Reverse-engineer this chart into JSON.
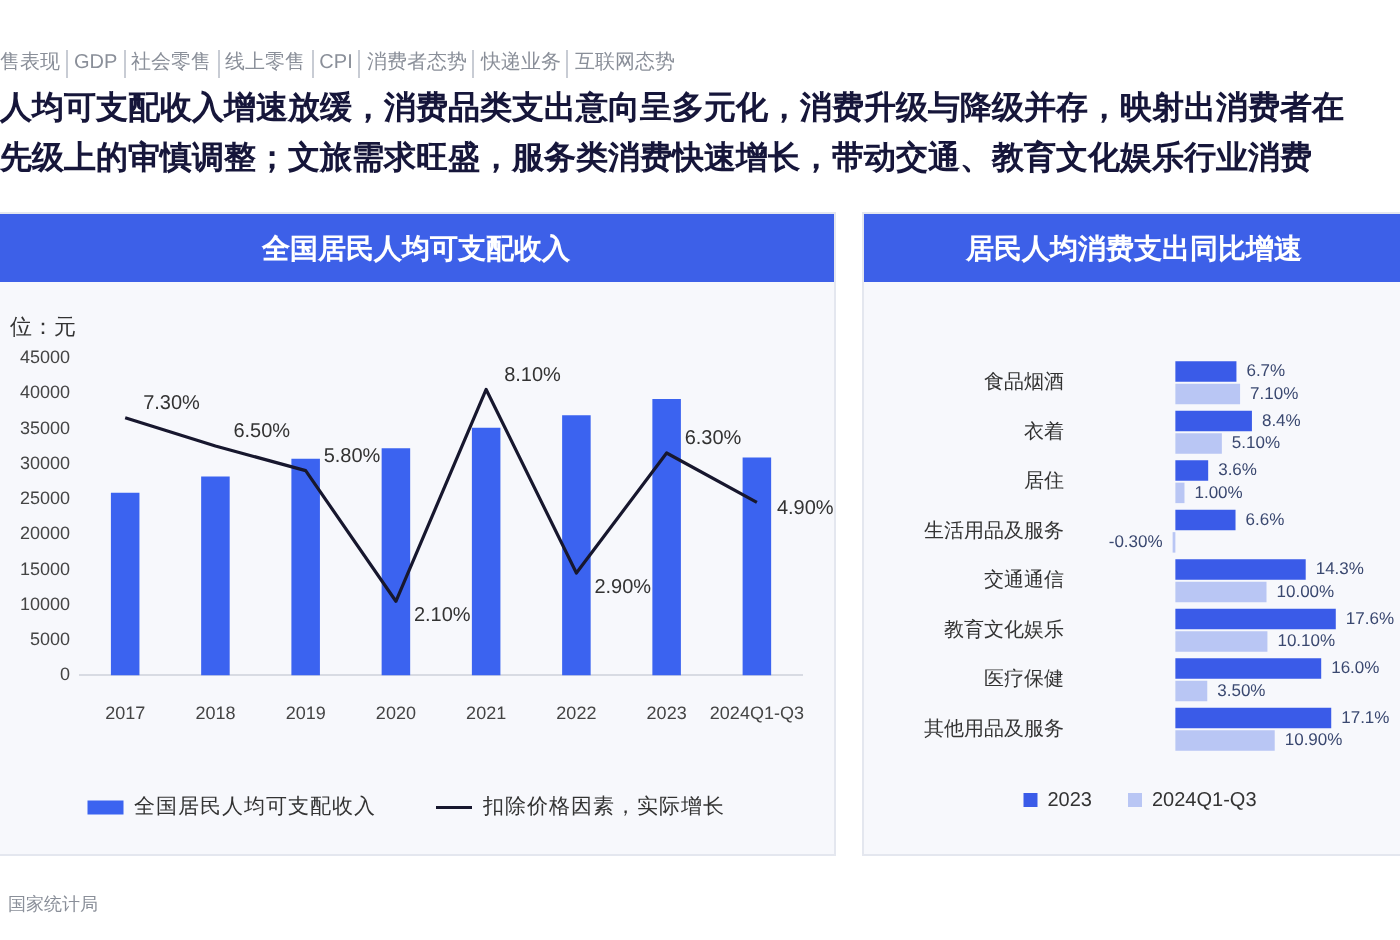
{
  "chart_data": [
    {
      "type": "other",
      "title": "人均可支配收入增速放缓，消费品类支出意向呈多元化，消费升级与降级并存，映射出消费者在先级上的审慎调整；文旅需求旺盛，服务类消费快速增长，带动交通、教育文化娱乐行业消费",
      "annotations": [
        "售表现",
        "GDP",
        "社会零售",
        "线上零售",
        "CPI",
        "消费者态势",
        "快递业务",
        "互联网态势"
      ]
    },
    {
      "type": "bar",
      "title": "全国居民人均可支配收入",
      "ylabel": "位：元",
      "categories": [
        "2017",
        "2018",
        "2019",
        "2020",
        "2021",
        "2022",
        "2023",
        "2024Q1-Q3"
      ],
      "ylim": [
        0,
        45000
      ],
      "yticks": [
        0,
        5000,
        10000,
        15000,
        20000,
        25000,
        30000,
        35000,
        40000,
        45000
      ],
      "legend": "bottom",
      "marker": "none",
      "annotations": [
        "国家统计局"
      ],
      "series": [
        {
          "name": "全国居民人均可支配收入",
          "color": "#3b63f0",
          "values": [
            25900,
            28200,
            30700,
            32200,
            35100,
            36900,
            39200,
            30900
          ]
        },
        {
          "name": "扣除价格因素，实际增长",
          "type": "line",
          "axis": "y2",
          "color": "#17172e",
          "values": [
            7.3,
            6.5,
            5.8,
            2.1,
            8.1,
            2.9,
            6.3,
            4.9
          ],
          "value_labels": [
            "7.30%",
            "6.50%",
            "5.80%",
            "2.10%",
            "8.10%",
            "2.90%",
            "6.30%",
            "4.90%"
          ]
        }
      ]
    },
    {
      "type": "bar",
      "orientation": "horizontal",
      "title": "居民人均消费支出同比增速",
      "categories": [
        "食品烟酒",
        "衣着",
        "居住",
        "生活用品及服务",
        "交通通信",
        "教育文化娱乐",
        "医疗保健",
        "其他用品及服务"
      ],
      "legend": "bottom",
      "series": [
        {
          "name": "2023",
          "color": "#3a5be8",
          "values": [
            6.7,
            8.4,
            3.6,
            6.6,
            14.3,
            17.6,
            16.0,
            17.1
          ],
          "value_labels": [
            "6.7%",
            "8.4%",
            "3.6%",
            "6.6%",
            "14.3%",
            "17.6%",
            "16.0%",
            "17.1%"
          ]
        },
        {
          "name": "2024Q1-Q3",
          "color": "#b9c6f4",
          "values": [
            7.1,
            5.1,
            1.0,
            -0.3,
            10.0,
            10.1,
            3.5,
            10.9
          ],
          "value_labels": [
            "7.10%",
            "5.10%",
            "1.00%",
            "-0.30%",
            "10.00%",
            "10.10%",
            "3.50%",
            "10.90%"
          ]
        }
      ]
    }
  ]
}
